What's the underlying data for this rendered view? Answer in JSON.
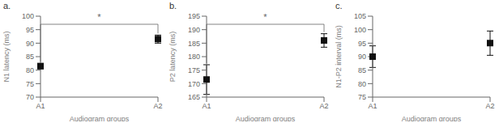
{
  "chart_data": [
    {
      "type": "scatter",
      "title": "a.",
      "xlabel": "Audiogram groups",
      "ylabel": "N1 latency (ms)",
      "categories": [
        "A1",
        "A2"
      ],
      "values": [
        81.5,
        91.5
      ],
      "errors": [
        1.0,
        1.5
      ],
      "ylim": [
        70,
        100
      ],
      "yticks": [
        70,
        75,
        80,
        85,
        90,
        95,
        100
      ],
      "color": "#111111",
      "marker": "square",
      "grid": false,
      "annotations": [
        {
          "text": "*",
          "color": "#666666"
        }
      ]
    },
    {
      "type": "scatter",
      "title": "b.",
      "xlabel": "Audiogram groups",
      "ylabel": "P2 latency (ms)",
      "categories": [
        "A1",
        "A2"
      ],
      "values": [
        171.5,
        186.0
      ],
      "errors": [
        5.5,
        2.5
      ],
      "ylim": [
        165,
        195
      ],
      "yticks": [
        165,
        170,
        175,
        180,
        185,
        190,
        195
      ],
      "color": "#111111",
      "marker": "square",
      "grid": false,
      "annotations": [
        {
          "text": "*",
          "color": "#666666"
        }
      ]
    },
    {
      "type": "scatter",
      "title": "c.",
      "xlabel": "Audiogram groups",
      "ylabel": "N1-P2 interval (ms)",
      "categories": [
        "A1",
        "A2"
      ],
      "values": [
        90.0,
        95.0
      ],
      "errors": [
        4.0,
        4.5
      ],
      "ylim": [
        75,
        105
      ],
      "yticks": [
        75,
        80,
        85,
        90,
        95,
        100,
        105
      ],
      "color": "#111111",
      "marker": "square",
      "grid": false
    }
  ]
}
